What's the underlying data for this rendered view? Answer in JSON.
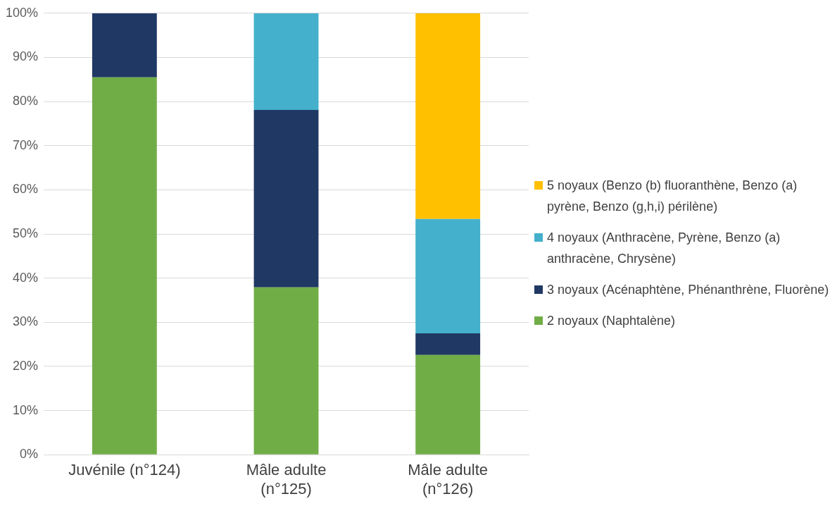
{
  "chart_data": {
    "type": "bar",
    "stacked": true,
    "categories": [
      "Juvénile (n°124)",
      "Mâle adulte (n°125)",
      "Mâle adulte (n°126)"
    ],
    "series": [
      {
        "name": "2 noyaux (Naphtalène)",
        "color": "#70ad47",
        "values": [
          85.5,
          37.9,
          22.6
        ]
      },
      {
        "name": "3 noyaux (Acénaphtène, Phénanthrène, Fluorène)",
        "color": "#203864",
        "values": [
          14.5,
          40.2,
          4.9
        ]
      },
      {
        "name": "4 noyaux (Anthracène, Pyrène, Benzo (a) anthracène, Chrysène)",
        "color": "#44b0cc",
        "values": [
          0,
          21.9,
          25.9
        ]
      },
      {
        "name": "5 noyaux (Benzo (b) fluoranthène, Benzo (a) pyrène, Benzo (g,h,i) périlène)",
        "color": "#ffc000",
        "values": [
          0,
          0,
          46.6
        ]
      }
    ],
    "ylim": [
      0,
      100
    ],
    "yticks": [
      {
        "value": 0,
        "label": "0%"
      },
      {
        "value": 10,
        "label": "10%"
      },
      {
        "value": 20,
        "label": "20%"
      },
      {
        "value": 30,
        "label": "30%"
      },
      {
        "value": 40,
        "label": "40%"
      },
      {
        "value": 50,
        "label": "50%"
      },
      {
        "value": 60,
        "label": "60%"
      },
      {
        "value": 70,
        "label": "70%"
      },
      {
        "value": 80,
        "label": "80%"
      },
      {
        "value": 90,
        "label": "90%"
      },
      {
        "value": 100,
        "label": "100%"
      }
    ],
    "grid": "y",
    "legend": "right"
  }
}
